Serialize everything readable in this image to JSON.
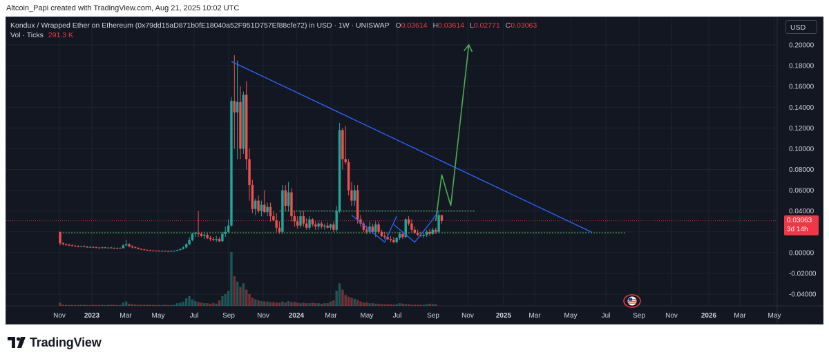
{
  "credit": "Altcoin_Papi created with TradingView.com, Aug 21, 2025 10:02 UTC",
  "legend": {
    "symbol": "Kondux / Wrapped Ether on Ethereum (0x79dd15aD871b0fE18040a52F951D757Ef88cfe72) in USD · 1W · UNISWAP",
    "o_label": "O",
    "o_value": "0.03614",
    "h_label": "H",
    "h_value": "0.03614",
    "l_label": "L",
    "l_value": "0.02771",
    "c_label": "C",
    "c_value": "0.03063",
    "vol_label": "Vol · Ticks",
    "vol_value": "291.3 K"
  },
  "currency_button": "USD",
  "last_price": {
    "value": "0.03063",
    "countdown": "3d 14h"
  },
  "logo_text": "TradingView",
  "colors": {
    "up": "#26a69a",
    "down": "#ef5350",
    "trendline": "#2962ff",
    "forecast": "#4caf50",
    "support": "#4caf50",
    "background": "#131722"
  },
  "chart_data": {
    "type": "candlestick",
    "title": "",
    "x_ticks": [
      "Nov",
      "2023",
      "Mar",
      "May",
      "Jul",
      "Sep",
      "Nov",
      "2024",
      "Mar",
      "May",
      "Jul",
      "Sep",
      "Nov",
      "2025",
      "Mar",
      "May",
      "Jul",
      "Sep",
      "Nov",
      "2026",
      "Mar",
      "May"
    ],
    "y_ticks": [
      "0.20000",
      "0.18000",
      "0.16000",
      "0.14000",
      "0.12000",
      "0.10000",
      "0.08000",
      "0.06000",
      "0.04000",
      "0.02000",
      "0.00000",
      "-0.02000",
      "-0.04000"
    ],
    "ylim": [
      -0.048,
      0.218
    ],
    "grid": true,
    "series_ohlc": [
      [
        0.02,
        0.02,
        0.007,
        0.009
      ],
      [
        0.009,
        0.01,
        0.007,
        0.008
      ],
      [
        0.008,
        0.009,
        0.0065,
        0.0075
      ],
      [
        0.0075,
        0.0085,
        0.006,
        0.007
      ],
      [
        0.007,
        0.008,
        0.006,
        0.0065
      ],
      [
        0.0065,
        0.0075,
        0.0055,
        0.006
      ],
      [
        0.006,
        0.007,
        0.005,
        0.0055
      ],
      [
        0.0055,
        0.0065,
        0.005,
        0.006
      ],
      [
        0.006,
        0.007,
        0.005,
        0.0055
      ],
      [
        0.0055,
        0.0065,
        0.0048,
        0.005
      ],
      [
        0.005,
        0.006,
        0.0045,
        0.0055
      ],
      [
        0.0055,
        0.006,
        0.0045,
        0.005
      ],
      [
        0.005,
        0.006,
        0.0045,
        0.0048
      ],
      [
        0.0048,
        0.0055,
        0.004,
        0.0045
      ],
      [
        0.0045,
        0.0055,
        0.004,
        0.005
      ],
      [
        0.005,
        0.0055,
        0.004,
        0.0045
      ],
      [
        0.0045,
        0.005,
        0.004,
        0.0048
      ],
      [
        0.0048,
        0.0055,
        0.004,
        0.0045
      ],
      [
        0.0045,
        0.005,
        0.0035,
        0.004
      ],
      [
        0.004,
        0.005,
        0.0035,
        0.0045
      ],
      [
        0.0045,
        0.005,
        0.004,
        0.0042
      ],
      [
        0.0042,
        0.008,
        0.004,
        0.007
      ],
      [
        0.007,
        0.012,
        0.006,
        0.008
      ],
      [
        0.008,
        0.009,
        0.005,
        0.006
      ],
      [
        0.006,
        0.007,
        0.004,
        0.005
      ],
      [
        0.005,
        0.006,
        0.004,
        0.0045
      ],
      [
        0.0045,
        0.005,
        0.003,
        0.0035
      ],
      [
        0.0035,
        0.004,
        0.0025,
        0.003
      ],
      [
        0.003,
        0.0035,
        0.002,
        0.0025
      ],
      [
        0.0025,
        0.003,
        0.002,
        0.0022
      ],
      [
        0.0022,
        0.003,
        0.0018,
        0.002
      ],
      [
        0.002,
        0.0025,
        0.0015,
        0.0018
      ],
      [
        0.0018,
        0.0022,
        0.0015,
        0.0017
      ],
      [
        0.0017,
        0.002,
        0.0012,
        0.0015
      ],
      [
        0.0015,
        0.002,
        0.0012,
        0.0016
      ],
      [
        0.0016,
        0.002,
        0.0012,
        0.0014
      ],
      [
        0.0014,
        0.0018,
        0.001,
        0.0013
      ],
      [
        0.0013,
        0.0018,
        0.001,
        0.0015
      ],
      [
        0.0015,
        0.002,
        0.0012,
        0.0017
      ],
      [
        0.0017,
        0.003,
        0.0015,
        0.0025
      ],
      [
        0.0025,
        0.004,
        0.002,
        0.0035
      ],
      [
        0.0035,
        0.006,
        0.003,
        0.005
      ],
      [
        0.005,
        0.009,
        0.004,
        0.008
      ],
      [
        0.008,
        0.015,
        0.007,
        0.012
      ],
      [
        0.012,
        0.019,
        0.011,
        0.018
      ],
      [
        0.018,
        0.02,
        0.015,
        0.019
      ],
      [
        0.019,
        0.04,
        0.015,
        0.018
      ],
      [
        0.018,
        0.02,
        0.015,
        0.016
      ],
      [
        0.016,
        0.02,
        0.013,
        0.017
      ],
      [
        0.017,
        0.019,
        0.013,
        0.014
      ],
      [
        0.014,
        0.016,
        0.011,
        0.013
      ],
      [
        0.013,
        0.015,
        0.011,
        0.012
      ],
      [
        0.012,
        0.016,
        0.01,
        0.013
      ],
      [
        0.013,
        0.015,
        0.01,
        0.011
      ],
      [
        0.011,
        0.02,
        0.01,
        0.018
      ],
      [
        0.018,
        0.025,
        0.015,
        0.02
      ],
      [
        0.02,
        0.032,
        0.019,
        0.026
      ],
      [
        0.026,
        0.15,
        0.025,
        0.146
      ],
      [
        0.146,
        0.19,
        0.1,
        0.135
      ],
      [
        0.135,
        0.185,
        0.09,
        0.145
      ],
      [
        0.145,
        0.16,
        0.09,
        0.1
      ],
      [
        0.1,
        0.155,
        0.095,
        0.152
      ],
      [
        0.152,
        0.165,
        0.08,
        0.09
      ],
      [
        0.09,
        0.1,
        0.05,
        0.065
      ],
      [
        0.065,
        0.07,
        0.038,
        0.042
      ],
      [
        0.042,
        0.052,
        0.036,
        0.05
      ],
      [
        0.05,
        0.055,
        0.038,
        0.04
      ],
      [
        0.04,
        0.05,
        0.035,
        0.046
      ],
      [
        0.046,
        0.06,
        0.038,
        0.039
      ],
      [
        0.039,
        0.048,
        0.035,
        0.044
      ],
      [
        0.044,
        0.048,
        0.03,
        0.035
      ],
      [
        0.035,
        0.04,
        0.03,
        0.031
      ],
      [
        0.031,
        0.038,
        0.02,
        0.024
      ],
      [
        0.024,
        0.03,
        0.018,
        0.02
      ],
      [
        0.02,
        0.065,
        0.018,
        0.06
      ],
      [
        0.06,
        0.065,
        0.04,
        0.045
      ],
      [
        0.045,
        0.068,
        0.04,
        0.058
      ],
      [
        0.058,
        0.062,
        0.03,
        0.035
      ],
      [
        0.035,
        0.04,
        0.025,
        0.03
      ],
      [
        0.03,
        0.035,
        0.023,
        0.026
      ],
      [
        0.026,
        0.04,
        0.024,
        0.035
      ],
      [
        0.035,
        0.04,
        0.025,
        0.028
      ],
      [
        0.028,
        0.033,
        0.022,
        0.024
      ],
      [
        0.024,
        0.035,
        0.022,
        0.032
      ],
      [
        0.032,
        0.033,
        0.025,
        0.027
      ],
      [
        0.027,
        0.03,
        0.022,
        0.025
      ],
      [
        0.025,
        0.03,
        0.022,
        0.028
      ],
      [
        0.028,
        0.03,
        0.023,
        0.025
      ],
      [
        0.025,
        0.028,
        0.022,
        0.026
      ],
      [
        0.026,
        0.029,
        0.023,
        0.024
      ],
      [
        0.024,
        0.028,
        0.022,
        0.027
      ],
      [
        0.027,
        0.03,
        0.02,
        0.022
      ],
      [
        0.022,
        0.045,
        0.02,
        0.04
      ],
      [
        0.04,
        0.125,
        0.038,
        0.118
      ],
      [
        0.118,
        0.12,
        0.08,
        0.09
      ],
      [
        0.09,
        0.122,
        0.085,
        0.087
      ],
      [
        0.087,
        0.09,
        0.055,
        0.06
      ],
      [
        0.06,
        0.068,
        0.045,
        0.05
      ],
      [
        0.05,
        0.065,
        0.045,
        0.06
      ],
      [
        0.06,
        0.065,
        0.028,
        0.032
      ],
      [
        0.032,
        0.036,
        0.025,
        0.028
      ],
      [
        0.028,
        0.03,
        0.02,
        0.022
      ],
      [
        0.022,
        0.026,
        0.018,
        0.02
      ],
      [
        0.02,
        0.03,
        0.018,
        0.025
      ],
      [
        0.025,
        0.028,
        0.018,
        0.02
      ],
      [
        0.02,
        0.03,
        0.015,
        0.027
      ],
      [
        0.027,
        0.03,
        0.018,
        0.02
      ],
      [
        0.02,
        0.022,
        0.015,
        0.016
      ],
      [
        0.016,
        0.02,
        0.013,
        0.015
      ],
      [
        0.015,
        0.018,
        0.012,
        0.013
      ],
      [
        0.013,
        0.016,
        0.01,
        0.012
      ],
      [
        0.012,
        0.015,
        0.009,
        0.01
      ],
      [
        0.01,
        0.015,
        0.009,
        0.014
      ],
      [
        0.014,
        0.02,
        0.012,
        0.018
      ],
      [
        0.018,
        0.02,
        0.013,
        0.015
      ],
      [
        0.015,
        0.033,
        0.014,
        0.032
      ],
      [
        0.032,
        0.035,
        0.026,
        0.028
      ],
      [
        0.028,
        0.032,
        0.02,
        0.022
      ],
      [
        0.022,
        0.025,
        0.018,
        0.019
      ],
      [
        0.019,
        0.022,
        0.016,
        0.017
      ],
      [
        0.017,
        0.02,
        0.015,
        0.016
      ],
      [
        0.016,
        0.019,
        0.014,
        0.017
      ],
      [
        0.017,
        0.022,
        0.015,
        0.02
      ],
      [
        0.02,
        0.023,
        0.016,
        0.018
      ],
      [
        0.018,
        0.024,
        0.017,
        0.022
      ],
      [
        0.022,
        0.024,
        0.018,
        0.02
      ],
      [
        0.02,
        0.038,
        0.019,
        0.036
      ],
      [
        0.0361,
        0.0361,
        0.0277,
        0.0306
      ]
    ],
    "volume": [
      0.06,
      0.02,
      0.02,
      0.015,
      0.02,
      0.015,
      0.015,
      0.02,
      0.02,
      0.015,
      0.015,
      0.02,
      0.015,
      0.015,
      0.02,
      0.015,
      0.02,
      0.02,
      0.02,
      0.015,
      0.015,
      0.06,
      0.08,
      0.04,
      0.03,
      0.025,
      0.02,
      0.02,
      0.02,
      0.02,
      0.02,
      0.02,
      0.015,
      0.015,
      0.015,
      0.02,
      0.015,
      0.015,
      0.02,
      0.05,
      0.06,
      0.08,
      0.14,
      0.18,
      0.12,
      0.09,
      0.07,
      0.06,
      0.05,
      0.05,
      0.04,
      0.05,
      0.04,
      0.1,
      0.18,
      0.22,
      0.28,
      1.0,
      0.55,
      0.45,
      0.35,
      0.42,
      0.3,
      0.22,
      0.15,
      0.12,
      0.1,
      0.09,
      0.08,
      0.08,
      0.07,
      0.07,
      0.06,
      0.06,
      0.08,
      0.06,
      0.09,
      0.07,
      0.07,
      0.06,
      0.05,
      0.06,
      0.05,
      0.05,
      0.06,
      0.05,
      0.05,
      0.04,
      0.05,
      0.05,
      0.08,
      0.1,
      0.28,
      0.42,
      0.3,
      0.2,
      0.17,
      0.15,
      0.13,
      0.11,
      0.08,
      0.06,
      0.06,
      0.05,
      0.05,
      0.04,
      0.04,
      0.03,
      0.03,
      0.03,
      0.03,
      0.02,
      0.03,
      0.05,
      0.04,
      0.03,
      0.03,
      0.02,
      0.02,
      0.02,
      0.02,
      0.02,
      0.03,
      0.04,
      0.03,
      0.03
    ],
    "resistance_trendline": {
      "from": [
        57,
        0.184
      ],
      "to": [
        177,
        0.0195
      ]
    },
    "support_level_upper": 0.04,
    "support_level_lower": 0.019,
    "last_price_level": 0.03063,
    "forecast_path": [
      [
        125,
        0.0306
      ],
      [
        127,
        0.075
      ],
      [
        130,
        0.045
      ],
      [
        136,
        0.2
      ]
    ],
    "channel_lines": [
      [
        [
          97,
          0.036
        ],
        [
          108,
          0.01
        ],
        [
          112,
          0.035
        ]
      ],
      [
        [
          111,
          0.027
        ],
        [
          118,
          0.01
        ],
        [
          123,
          0.028
        ],
        [
          126,
          0.04
        ]
      ]
    ]
  }
}
